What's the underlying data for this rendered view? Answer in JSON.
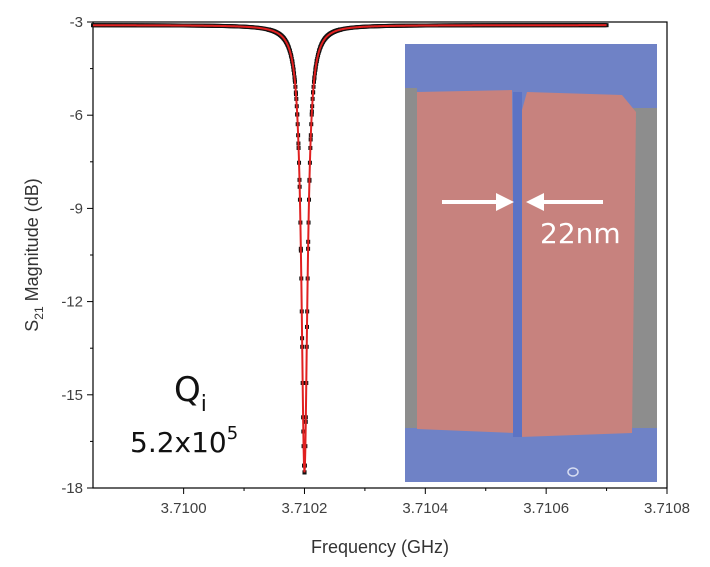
{
  "chart_data": {
    "type": "line",
    "xlabel": "Frequency (GHz)",
    "ylabel_main": "S",
    "ylabel_sub": "21",
    "ylabel_rest": " Magnitude (dB)",
    "xlim": [
      3.70985,
      3.7108
    ],
    "ylim": [
      -18,
      -3
    ],
    "x_ticks": [
      3.71,
      3.7102,
      3.7104,
      3.7106,
      3.7108
    ],
    "x_tick_labels": [
      "3.7100",
      "3.7102",
      "3.7104",
      "3.7106",
      "3.7108"
    ],
    "y_ticks": [
      -3,
      -6,
      -9,
      -12,
      -15,
      -18
    ],
    "y_tick_labels": [
      "-3",
      "-6",
      "-9",
      "-12",
      "-15",
      "-18"
    ],
    "grid": false,
    "series": [
      {
        "kind": "measured",
        "color": "#111111",
        "resonance_freq": 3.7102,
        "baseline_db": -3.1,
        "min_db": -17.5,
        "x_range": [
          3.70985,
          3.7107
        ],
        "linewidth_ghz": 6e-06
      },
      {
        "kind": "fit",
        "color": "#e02020",
        "resonance_freq": 3.7102,
        "baseline_db": -3.1,
        "min_db": -17.5,
        "x_range": [
          3.70985,
          3.7107
        ],
        "linewidth_ghz": 6e-06
      }
    ],
    "annotations": {
      "q_label_main": "Q",
      "q_label_sub": "i",
      "q_value_mantissa": "5.2x10",
      "q_value_exp": "5",
      "inset_label": "22nm"
    }
  },
  "colors": {
    "inset_blue": "#6f82c6",
    "inset_red": "#c7827e",
    "inset_gray": "#8d8d8d",
    "arrow": "#ffffff"
  }
}
